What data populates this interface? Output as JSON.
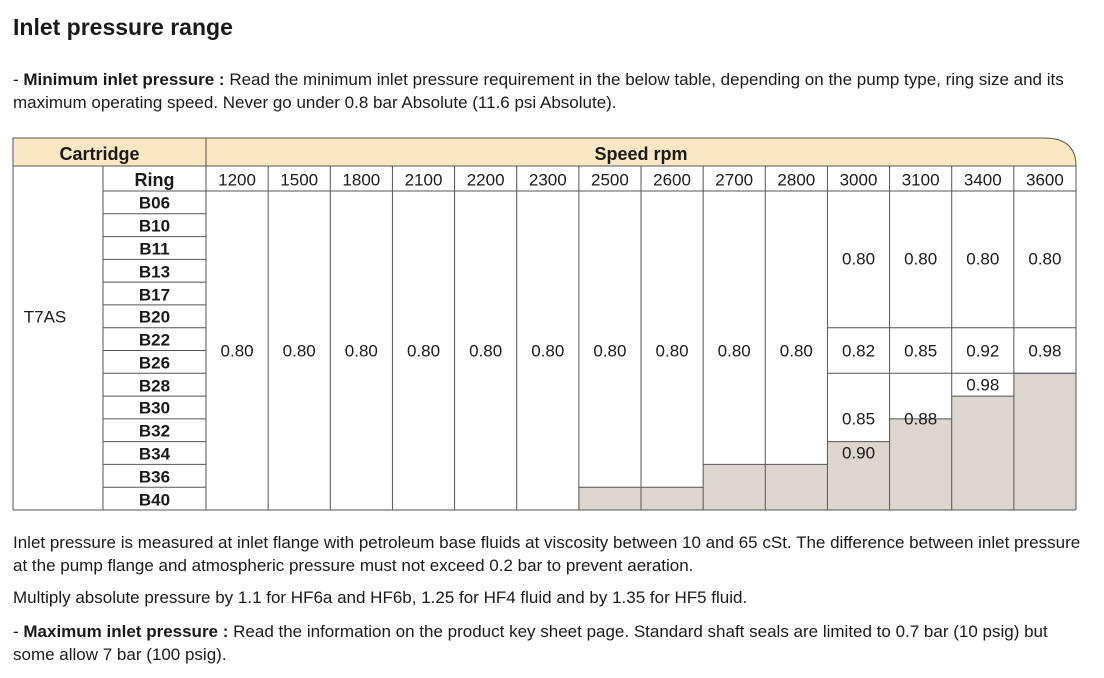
{
  "title": "Inlet pressure range",
  "min_note": {
    "prefix": "- ",
    "bold": "Minimum inlet pressure :",
    "text": " Read the minimum inlet pressure requirement in the below table, depending on the pump type, ring size and its  maximum operating speed. Never go under 0.8 bar Absolute (11.6 psi Absolute)."
  },
  "table": {
    "cartridge_header": "Cartridge",
    "speed_header": "Speed rpm",
    "ring_header": "Ring",
    "pump": "T7AS",
    "speeds": [
      "1200",
      "1500",
      "1800",
      "2100",
      "2200",
      "2300",
      "2500",
      "2600",
      "2700",
      "2800",
      "3000",
      "3100",
      "3400",
      "3600"
    ],
    "rings": [
      "B06",
      "B10",
      "B11",
      "B13",
      "B17",
      "B20",
      "B22",
      "B26",
      "B28",
      "B30",
      "B32",
      "B34",
      "B36",
      "B40"
    ],
    "values": {
      "common_value": "0.80",
      "block_upper": [
        "0.80",
        "0.80",
        "0.80",
        "0.80"
      ],
      "block_middle": [
        "0.82",
        "0.85",
        "0.92",
        "0.98"
      ],
      "block_lower": [
        "0.85",
        "0.88",
        "0.98"
      ],
      "block_b32": "0.90"
    },
    "colors": {
      "header_fill": "#fbe8c2",
      "unavailable_fill": "#dcd6cf",
      "grid": "#555555"
    }
  },
  "notes": {
    "measure": "Inlet pressure is measured at inlet flange with petroleum base fluids at viscosity between 10 and 65 cSt. The difference between inlet pressure at the pump flange and atmospheric pressure must not exceed 0.2 bar to prevent aeration.",
    "multiply": "Multiply absolute pressure by 1.1 for HF6a and HF6b, 1.25 for HF4 fluid and by 1.35 for HF5 fluid."
  },
  "max_note": {
    "prefix": "- ",
    "bold": "Maximum inlet pressure :",
    "text": " Read the information on the product key sheet page. Standard shaft seals are limited to 0.7 bar (10 psig) but some allow 7 bar (100 psig)."
  }
}
